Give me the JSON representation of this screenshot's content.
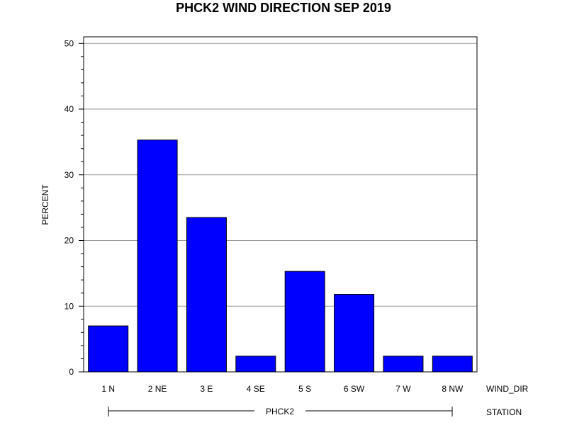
{
  "chart_data": {
    "type": "bar",
    "title": "PHCK2 WIND DIRECTION SEP 2019",
    "ylabel": "PERCENT",
    "xlabel": "WIND_DIR",
    "group_label": "STATION",
    "group_name": "PHCK2",
    "categories": [
      "1 N",
      "2 NE",
      "3 E",
      "4 SE",
      "5 S",
      "6 SW",
      "7 W",
      "8 NW"
    ],
    "values": [
      7.0,
      35.3,
      23.5,
      2.4,
      15.3,
      11.8,
      2.4,
      2.4
    ],
    "ylim": [
      0,
      51
    ],
    "yticks": [
      0,
      10,
      20,
      30,
      40,
      50
    ],
    "yticks_labels": [
      "0",
      "10",
      "20",
      "30",
      "40",
      "50"
    ],
    "minor_tick_step": 2,
    "grid": true,
    "bar_color": "#0000ff"
  }
}
